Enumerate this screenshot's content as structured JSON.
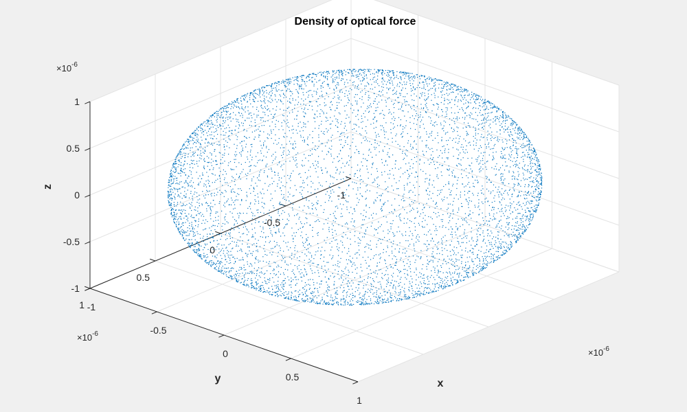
{
  "chart_data": {
    "type": "scatter",
    "title": "Density of optical force",
    "xlabel": "x",
    "ylabel": "y",
    "zlabel": "z",
    "xlim": [
      -1e-06,
      1e-06
    ],
    "ylim": [
      -1e-06,
      1e-06
    ],
    "zlim": [
      -1e-06,
      1e-06
    ],
    "x_ticks": [
      -1e-06,
      -5e-07,
      0,
      5e-07,
      1e-06
    ],
    "y_ticks": [
      -1e-06,
      -5e-07,
      0,
      5e-07,
      1e-06
    ],
    "z_ticks": [
      -1e-06,
      -5e-07,
      0,
      5e-07,
      1e-06
    ],
    "x_tick_labels": [
      "-1",
      "-0.5",
      "0",
      "0.5",
      "1"
    ],
    "y_tick_labels": [
      "-1",
      "-0.5",
      "0",
      "0.5",
      "1"
    ],
    "z_tick_labels": [
      "-1",
      "-0.5",
      "0",
      "0.5",
      "1"
    ],
    "exponent_base": "×10",
    "exponent": "-6",
    "grid": true,
    "box": false,
    "view": "3d",
    "marker_color": "#0072bd",
    "background_color": "#f0f0f0",
    "axes_color": "#ffffff",
    "point_cloud": {
      "shape": "sphere",
      "center": [
        0,
        0,
        0
      ],
      "radius": 1e-06,
      "count": 7000
    }
  }
}
